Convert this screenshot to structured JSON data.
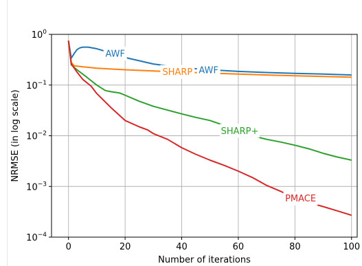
{
  "chart_data": {
    "type": "line",
    "title": "",
    "xlabel": "Number of iterations",
    "ylabel": "NRMSE (in log scale)",
    "xlim": [
      -6,
      102
    ],
    "ylim": [
      0.0001,
      1
    ],
    "yscale": "log",
    "x_ticks": [
      0,
      20,
      40,
      60,
      80,
      100
    ],
    "y_ticks": [
      {
        "value": 0.0001,
        "base": "10",
        "exp": "−4"
      },
      {
        "value": 0.001,
        "base": "10",
        "exp": "−3"
      },
      {
        "value": 0.01,
        "base": "10",
        "exp": "−2"
      },
      {
        "value": 0.1,
        "base": "10",
        "exp": "−1"
      },
      {
        "value": 1,
        "base": "10",
        "exp": "0"
      }
    ],
    "grid": true,
    "legend": "inline labels",
    "series": [
      {
        "name": "AWF",
        "color": "#1f77b4",
        "x": [
          0,
          1,
          2,
          3,
          4,
          5,
          7,
          10,
          15,
          20,
          30,
          40,
          50,
          60,
          70,
          80,
          90,
          100
        ],
        "y": [
          0.75,
          0.34,
          0.42,
          0.5,
          0.54,
          0.56,
          0.56,
          0.52,
          0.43,
          0.35,
          0.26,
          0.22,
          0.2,
          0.186,
          0.177,
          0.17,
          0.165,
          0.158
        ],
        "labels": [
          {
            "text": "AWF",
            "x": 16.5,
            "y": 0.42
          },
          {
            "text": "AWF",
            "x": 49.5,
            "y": 0.196
          }
        ]
      },
      {
        "name": "SHARP",
        "color": "#ff7f0e",
        "x": [
          0,
          1,
          2,
          5,
          10,
          20,
          30,
          40,
          50,
          60,
          70,
          80,
          90,
          100
        ],
        "y": [
          0.75,
          0.28,
          0.24,
          0.23,
          0.215,
          0.2,
          0.19,
          0.18,
          0.172,
          0.165,
          0.158,
          0.152,
          0.148,
          0.143
        ],
        "labels": [
          {
            "text": "SHARP",
            "x": 38.5,
            "y": 0.182
          }
        ]
      },
      {
        "name": "SHARP+",
        "color": "#2ca02c",
        "x": [
          0,
          1,
          3,
          6,
          10,
          13,
          15,
          18,
          20,
          25,
          30,
          35,
          40,
          45,
          50,
          55,
          60,
          65,
          70,
          75,
          80,
          85,
          90,
          95,
          100
        ],
        "y": [
          0.75,
          0.25,
          0.2,
          0.15,
          0.1,
          0.078,
          0.074,
          0.07,
          0.063,
          0.048,
          0.038,
          0.032,
          0.027,
          0.023,
          0.02,
          0.016,
          0.0125,
          0.01,
          0.0085,
          0.0075,
          0.0065,
          0.0055,
          0.0045,
          0.0038,
          0.0033
        ],
        "labels": [
          {
            "text": "SHARP+",
            "x": 60.5,
            "y": 0.0125
          }
        ]
      },
      {
        "name": "PMACE",
        "color": "#d62728",
        "x": [
          0,
          1,
          3,
          5,
          8,
          10,
          15,
          20,
          25,
          28,
          30,
          35,
          40,
          45,
          50,
          55,
          60,
          65,
          70,
          75,
          80,
          85,
          90,
          95,
          100
        ],
        "y": [
          0.75,
          0.26,
          0.18,
          0.13,
          0.095,
          0.068,
          0.036,
          0.02,
          0.015,
          0.013,
          0.011,
          0.0085,
          0.0058,
          0.0043,
          0.0033,
          0.0026,
          0.002,
          0.0015,
          0.00105,
          0.0008,
          0.00058,
          0.00048,
          0.0004,
          0.00033,
          0.00027
        ],
        "labels": [
          {
            "text": "PMACE",
            "x": 82,
            "y": 0.00058
          }
        ]
      }
    ]
  }
}
